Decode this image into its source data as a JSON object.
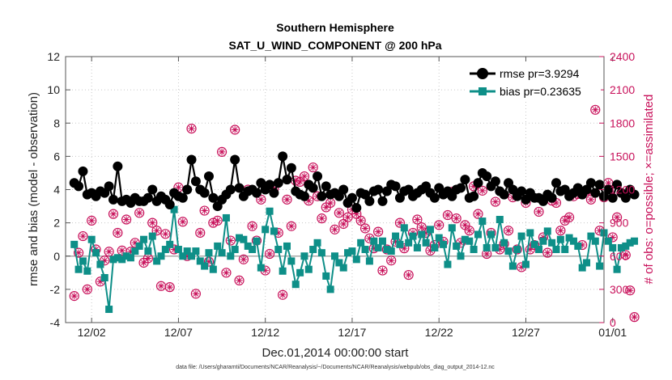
{
  "chart_data": {
    "type": "line",
    "title": "Southern Hemisphere",
    "subtitle": "SAT_U_WIND_COMPONENT @ 200 hPa",
    "xlabel": "Dec.01,2014 00:00:00 start",
    "ylabel": "rmse and bias (model - observation)",
    "y2label": "# of obs: o=possible; ×=assimilated",
    "footnote": "data file: /Users/gharamti/Documents/NCAR/Reanalysis/~/Documents/NCAR/Reanalysis/webpub/obs_diag_output_2014-12.nc",
    "xlim": [
      0.5,
      31.5
    ],
    "ylim": [
      -4,
      12
    ],
    "y2lim": [
      0,
      2400
    ],
    "x_ticks": [
      {
        "value": 2,
        "label": "12/02"
      },
      {
        "value": 7,
        "label": "12/07"
      },
      {
        "value": 12,
        "label": "12/12"
      },
      {
        "value": 17,
        "label": "12/17"
      },
      {
        "value": 22,
        "label": "12/22"
      },
      {
        "value": 27,
        "label": "12/27"
      },
      {
        "value": 32,
        "label": "01/01"
      }
    ],
    "y_ticks": [
      {
        "value": 12,
        "label": "12"
      },
      {
        "value": 10,
        "label": "10"
      },
      {
        "value": 8,
        "label": "8"
      },
      {
        "value": 6,
        "label": "6"
      },
      {
        "value": 4,
        "label": "4"
      },
      {
        "value": 2,
        "label": "2"
      },
      {
        "value": 0,
        "label": "0"
      },
      {
        "value": -2,
        "label": "-2"
      },
      {
        "value": -4,
        "label": "-4"
      }
    ],
    "y2_ticks": [
      {
        "value": 2400,
        "label": "2400"
      },
      {
        "value": 2100,
        "label": "2100"
      },
      {
        "value": 1800,
        "label": "1800"
      },
      {
        "value": 1500,
        "label": "1500"
      },
      {
        "value": 1200,
        "label": "1200"
      },
      {
        "value": 900,
        "label": "900"
      },
      {
        "value": 600,
        "label": "600"
      },
      {
        "value": 300,
        "label": "300"
      },
      {
        "value": 0,
        "label": "0"
      }
    ],
    "grid": true,
    "legend": [
      {
        "name": "rmse pr=3.9294",
        "color": "#000000",
        "marker": "circle"
      },
      {
        "name": "bias pr=0.23635",
        "color": "#0e8f88",
        "marker": "square"
      }
    ],
    "colors": {
      "rmse": "#000000",
      "bias": "#0e8f88",
      "obs": "#c8105a",
      "zero_line": "#aaaaaa"
    },
    "series": [
      {
        "name": "rmse",
        "x_start": 1.0,
        "x_step": 0.25,
        "values": [
          4.4,
          4.2,
          5.1,
          3.7,
          3.8,
          3.6,
          3.9,
          3.8,
          4.2,
          3.4,
          5.4,
          3.3,
          3.4,
          3.2,
          3.5,
          3.3,
          3.3,
          3.5,
          4.0,
          3.3,
          3.6,
          3.4,
          3.1,
          3.8,
          3.6,
          3.5,
          4.0,
          5.8,
          4.5,
          4.0,
          3.8,
          4.8,
          3.5,
          3.0,
          3.4,
          3.7,
          4.0,
          5.8,
          4.1,
          3.6,
          3.9,
          4.0,
          3.8,
          4.4,
          4.0,
          4.3,
          3.8,
          4.4,
          6.0,
          4.6,
          5.3,
          3.9,
          3.7,
          3.6,
          4.3,
          4.1,
          4.8,
          3.6,
          4.2,
          3.7,
          3.8,
          3.6,
          4.0,
          3.2,
          3.5,
          2.9,
          3.8,
          3.7,
          3.3,
          3.9,
          4.0,
          3.3,
          3.9,
          4.3,
          4.2,
          3.5,
          3.9,
          4.0,
          3.6,
          3.8,
          4.0,
          4.2,
          3.8,
          3.5,
          4.1,
          3.7,
          3.9,
          3.6,
          4.0,
          4.1,
          4.6,
          3.5,
          3.6,
          4.4,
          5.0,
          4.8,
          4.2,
          4.5,
          3.9,
          3.7,
          4.4,
          4.0,
          3.6,
          3.9,
          3.4,
          3.8,
          3.5,
          3.5,
          3.3,
          3.7,
          3.5,
          4.4,
          3.9,
          4.0,
          3.6,
          3.8,
          4.1,
          3.7,
          4.0,
          4.4,
          3.8,
          4.3,
          3.6,
          4.0,
          3.5,
          4.3,
          3.8,
          3.5,
          4.0,
          3.7
        ]
      },
      {
        "name": "bias",
        "x_start": 1.0,
        "x_step": 0.25,
        "values": [
          0.7,
          -0.8,
          -0.3,
          -0.9,
          1.0,
          0.2,
          -0.5,
          -1.3,
          -3.2,
          -0.2,
          -0.1,
          -0.2,
          0.0,
          -0.1,
          0.3,
          0.6,
          1.0,
          0.3,
          1.2,
          -0.3,
          0.0,
          0.4,
          0.7,
          2.8,
          0.4,
          0.0,
          0.3,
          0.0,
          0.3,
          -0.3,
          -0.6,
          0.2,
          -0.8,
          0.6,
          0.2,
          2.3,
          0.0,
          0.4,
          1.1,
          1.0,
          0.6,
          0.4,
          0.9,
          -0.7,
          1.6,
          2.7,
          1.5,
          0.4,
          -0.9,
          0.6,
          -0.3,
          -1.7,
          -1.0,
          0.0,
          -0.8,
          0.4,
          0.8,
          0.2,
          -1.2,
          -2.0,
          0.0,
          -0.4,
          -0.7,
          0.2,
          0.3,
          -0.2,
          0.8,
          0.4,
          -0.3,
          0.9,
          0.5,
          0.9,
          0.4,
          0.3,
          1.2,
          0.7,
          1.7,
          0.8,
          1.2,
          0.5,
          1.3,
          0.8,
          1.6,
          0.5,
          1.1,
          0.7,
          -0.5,
          1.7,
          0.6,
          0.0,
          1.0,
          0.9,
          0.4,
          1.3,
          2.1,
          0.5,
          1.3,
          0.5,
          2.2,
          0.8,
          0.3,
          -0.6,
          0.4,
          1.2,
          -0.5,
          1.4,
          0.7,
          0.4,
          0.9,
          1.5,
          0.8,
          0.4,
          1.0,
          0.4,
          1.1,
          0.9,
          0.6,
          -0.7,
          -0.4,
          1.2,
          0.9,
          -0.6,
          1.4,
          0.9,
          0.5,
          -0.8,
          0.5,
          0.6,
          0.8,
          0.9
        ]
      },
      {
        "name": "obs_possible",
        "axis": "right",
        "x_start": 1.0,
        "x_step": 0.25,
        "values": [
          240,
          630,
          780,
          300,
          920,
          660,
          370,
          560,
          640,
          980,
          810,
          650,
          930,
          640,
          720,
          990,
          540,
          580,
          900,
          830,
          330,
          800,
          320,
          660,
          1220,
          910,
          600,
          1750,
          260,
          810,
          1010,
          550,
          900,
          920,
          1540,
          450,
          740,
          1740,
          380,
          570,
          1200,
          870,
          740,
          1110,
          470,
          620,
          1210,
          810,
          250,
          1110,
          870,
          1280,
          1270,
          1320,
          1100,
          1400,
          1140,
          940,
          1040,
          1080,
          840,
          990,
          890,
          950,
          1020,
          980,
          920,
          850,
          760,
          670,
          820,
          470,
          660,
          560,
          730,
          900,
          670,
          430,
          810,
          930,
          860,
          810,
          650,
          700,
          880,
          730,
          970,
          1180,
          940,
          720,
          880,
          830,
          1230,
          980,
          1190,
          620,
          810,
          1090,
          660,
          710,
          830,
          1130,
          660,
          500,
          1080,
          660,
          700,
          1000,
          770,
          630,
          1100,
          1080,
          830,
          920,
          950,
          1140,
          1160,
          700,
          1190,
          1110,
          1920,
          830,
          1130,
          1260,
          770,
          950,
          1170,
          610,
          290,
          50
        ]
      },
      {
        "name": "obs_assimilated",
        "axis": "right",
        "x_start": 1.0,
        "x_step": 0.25,
        "values": [
          240,
          630,
          780,
          300,
          920,
          660,
          370,
          560,
          640,
          980,
          810,
          650,
          930,
          640,
          720,
          990,
          540,
          580,
          900,
          830,
          330,
          800,
          320,
          660,
          1220,
          910,
          600,
          1750,
          260,
          810,
          1010,
          550,
          900,
          920,
          1540,
          450,
          740,
          1740,
          380,
          570,
          1200,
          870,
          740,
          1110,
          470,
          620,
          1210,
          810,
          250,
          1110,
          870,
          1280,
          1270,
          1320,
          1100,
          1400,
          1140,
          940,
          1040,
          1080,
          840,
          990,
          890,
          950,
          1020,
          980,
          920,
          850,
          760,
          670,
          820,
          470,
          660,
          560,
          730,
          900,
          670,
          430,
          810,
          930,
          860,
          810,
          650,
          700,
          880,
          730,
          970,
          1180,
          940,
          720,
          880,
          830,
          1230,
          980,
          1190,
          620,
          810,
          1090,
          660,
          710,
          830,
          1130,
          660,
          500,
          1080,
          660,
          700,
          1000,
          770,
          630,
          1100,
          1080,
          830,
          920,
          950,
          1140,
          1160,
          700,
          1190,
          1110,
          1920,
          830,
          1130,
          1260,
          770,
          950,
          1170,
          610,
          290,
          50
        ]
      }
    ]
  }
}
